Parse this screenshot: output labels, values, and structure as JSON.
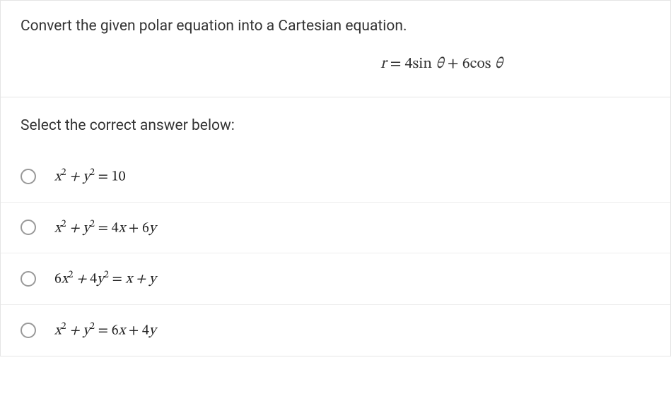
{
  "question": {
    "prompt_text": "Convert the given polar equation into a Cartesian equation.",
    "equation_html": "<span class='it'>r</span> = 4sin <span class='it'>θ</span> + 6cos <span class='it'>θ</span>",
    "select_prompt": "Select the correct answer below:"
  },
  "options": [
    {
      "id": "opt-1",
      "html": "x<sup>2</sup> + y<sup>2</sup> <span class='rm'>= 10</span>"
    },
    {
      "id": "opt-2",
      "html": "x<sup>2</sup> + y<sup>2</sup> <span class='rm'>= 4</span>x <span class='rm'>+ 6</span>y"
    },
    {
      "id": "opt-3",
      "html": "<span class='rm'>6</span>x<sup>2</sup> + <span class='rm'>4</span>y<sup>2</sup> <span class='rm'>=</span> x + y"
    },
    {
      "id": "opt-4",
      "html": "x<sup>2</sup> + y<sup>2</sup> <span class='rm'>= 6</span>x <span class='rm'>+ 4</span>y"
    }
  ],
  "style": {
    "text_color": "#333333",
    "border_color": "#e5e5e5",
    "option_border_color": "#eeeeee",
    "radio_border_color": "#999999",
    "background_color": "#ffffff",
    "question_fontsize": 21,
    "equation_fontsize": 22,
    "option_fontsize": 20
  }
}
